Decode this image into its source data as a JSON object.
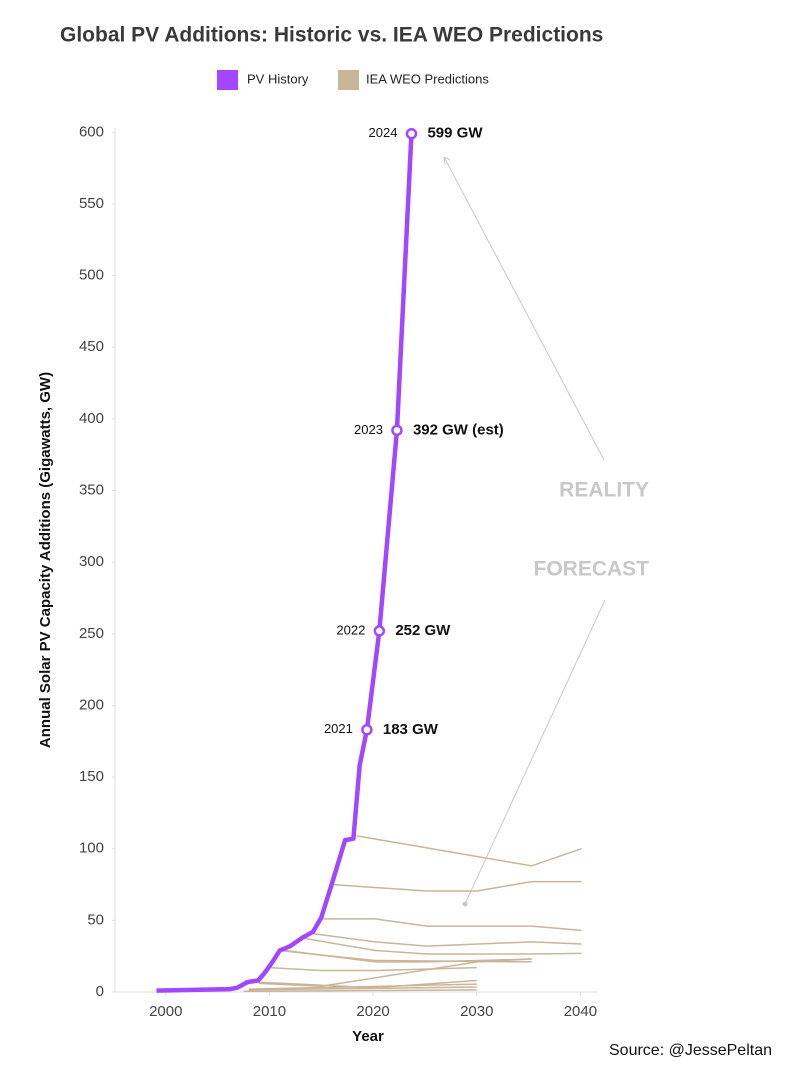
{
  "chart_data": {
    "type": "line",
    "title": "Global PV Additions: Historic vs. IEA WEO Predictions",
    "x_label": "Year",
    "y_label": "Annual Solar PV Capacity Additions (Gigawatts, GW)",
    "source": "Source: @JessePeltan",
    "xlim": [
      1995.1,
      2041.6
    ],
    "xticks": [
      2000,
      2010,
      2020,
      2030,
      2040
    ],
    "ylim": [
      0,
      603
    ],
    "yticks": [
      0,
      50,
      100,
      150,
      200,
      250,
      300,
      350,
      400,
      450,
      500,
      550,
      600
    ],
    "grid": false,
    "series": [
      {
        "name": "PV History",
        "color": "#a347ff",
        "x": [
          1999.1,
          2006.2,
          2006.9,
          2007.9,
          2008.9,
          2009.5,
          2010.2,
          2011.0,
          2012.0,
          2013.2,
          2014.2,
          2015.0,
          2016.0,
          2017.3,
          2018.1,
          2018.7,
          2019.4,
          2019.7,
          2020.6,
          2022.3,
          2023.7
        ],
        "values": [
          1,
          2,
          3,
          7,
          8,
          13,
          20,
          29,
          32,
          38,
          42,
          52,
          75,
          106,
          107,
          158,
          183,
          200,
          252,
          392,
          599
        ]
      }
    ],
    "predictions": {
      "name": "IEA WEO Predictions",
      "color": "#c9b59a",
      "lines": [
        {
          "x": [
            2018.4,
            2035.3,
            2040.1
          ],
          "values": [
            109,
            88,
            100
          ]
        },
        {
          "x": [
            2016,
            2025.2,
            2030,
            2035.3,
            2040.1
          ],
          "values": [
            75,
            70.5,
            70.5,
            77,
            77
          ]
        },
        {
          "x": [
            2015,
            2020.2,
            2025.2,
            2035.3,
            2040.1
          ],
          "values": [
            51,
            51,
            46,
            46,
            43
          ]
        },
        {
          "x": [
            2013.9,
            2020.2,
            2025.2,
            2035.3,
            2040.1
          ],
          "values": [
            41,
            35,
            32,
            35,
            33.5
          ]
        },
        {
          "x": [
            2012.9,
            2020.2,
            2025.2,
            2035.3,
            2040.1
          ],
          "values": [
            38,
            29,
            26.5,
            26.5,
            27
          ]
        },
        {
          "x": [
            2011.5,
            2020.2,
            2025.2,
            2035.3
          ],
          "values": [
            29,
            21,
            21,
            23
          ]
        },
        {
          "x": [
            2011,
            2014.7,
            2020.2,
            2035.3
          ],
          "values": [
            29,
            26,
            22,
            21
          ]
        },
        {
          "x": [
            2010,
            2015,
            2020.2,
            2030
          ],
          "values": [
            17,
            15,
            15,
            17
          ]
        },
        {
          "x": [
            2009,
            2015,
            2030,
            2035.3
          ],
          "values": [
            6,
            4,
            21,
            23
          ]
        },
        {
          "x": [
            2008.6,
            2020.2,
            2030
          ],
          "values": [
            7,
            3,
            8
          ]
        },
        {
          "x": [
            2008,
            2030
          ],
          "values": [
            2,
            5.5
          ]
        },
        {
          "x": [
            2008,
            2030
          ],
          "values": [
            1.5,
            3.5
          ]
        },
        {
          "x": [
            2007.5,
            2030
          ],
          "values": [
            0.5,
            1.5
          ]
        }
      ]
    },
    "annotations": [
      {
        "label": "2021",
        "x": 2019.4,
        "y": 183,
        "text": "183 GW"
      },
      {
        "label": "2022",
        "x": 2020.6,
        "y": 252,
        "text": "252 GW"
      },
      {
        "label": "2023",
        "x": 2022.3,
        "y": 392,
        "text": "392 GW (est)"
      },
      {
        "label": "2024",
        "x": 2023.7,
        "y": 599,
        "text": "599 GW"
      }
    ],
    "callouts": [
      "REALITY",
      "FORECAST"
    ]
  }
}
